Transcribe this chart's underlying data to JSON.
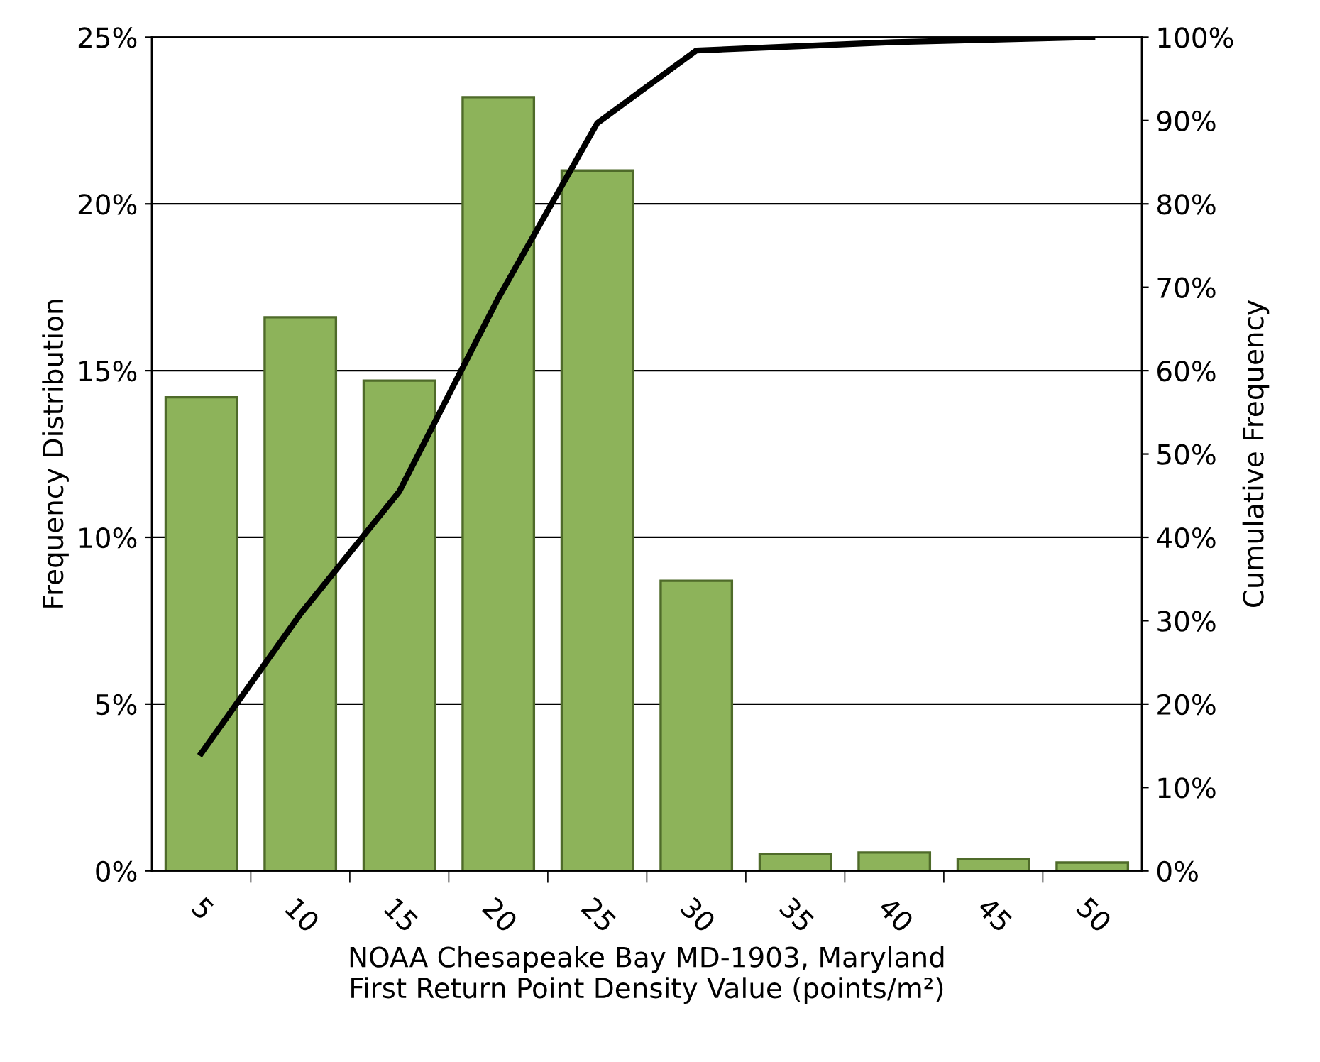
{
  "chart_data": {
    "type": "bar",
    "xlabel": "NOAA Chesapeake Bay MD-1903, Maryland\nFirst Return Point Density Value (points/m²)",
    "ylabel": "Frequency Distribution",
    "y2label": "Cumulative Frequency",
    "categories": [
      "5",
      "10",
      "15",
      "20",
      "25",
      "30",
      "35",
      "40",
      "45",
      "50"
    ],
    "series": [
      {
        "color": "#8db35a",
        "values": [
          14.2,
          16.6,
          14.7,
          23.2,
          21.0,
          8.7,
          0.5,
          0.55,
          0.35,
          0.25
        ]
      },
      {
        "type": "line",
        "axis": "y2",
        "color": "#000000",
        "values": [
          14.1,
          30.8,
          45.5,
          68.7,
          89.7,
          98.4,
          98.9,
          99.4,
          99.7,
          100
        ]
      }
    ],
    "ylim": [
      0,
      25
    ],
    "yticks": [
      {
        "value": 0,
        "label": "0%"
      },
      {
        "value": 5,
        "label": "5%"
      },
      {
        "value": 10,
        "label": "10%"
      },
      {
        "value": 15,
        "label": "15%"
      },
      {
        "value": 20,
        "label": "20%"
      },
      {
        "value": 25,
        "label": "25%"
      }
    ],
    "y2lim": [
      0,
      100
    ],
    "y2ticks": [
      {
        "value": 0,
        "label": "0%"
      },
      {
        "value": 10,
        "label": "10%"
      },
      {
        "value": 20,
        "label": "20%"
      },
      {
        "value": 30,
        "label": "30%"
      },
      {
        "value": 40,
        "label": "40%"
      },
      {
        "value": 50,
        "label": "50%"
      },
      {
        "value": 60,
        "label": "60%"
      },
      {
        "value": 70,
        "label": "70%"
      },
      {
        "value": 80,
        "label": "80%"
      },
      {
        "value": 90,
        "label": "90%"
      },
      {
        "value": 100,
        "label": "100%"
      }
    ],
    "grid": "y",
    "legend": false,
    "marker": "none",
    "line_style": "solid"
  }
}
